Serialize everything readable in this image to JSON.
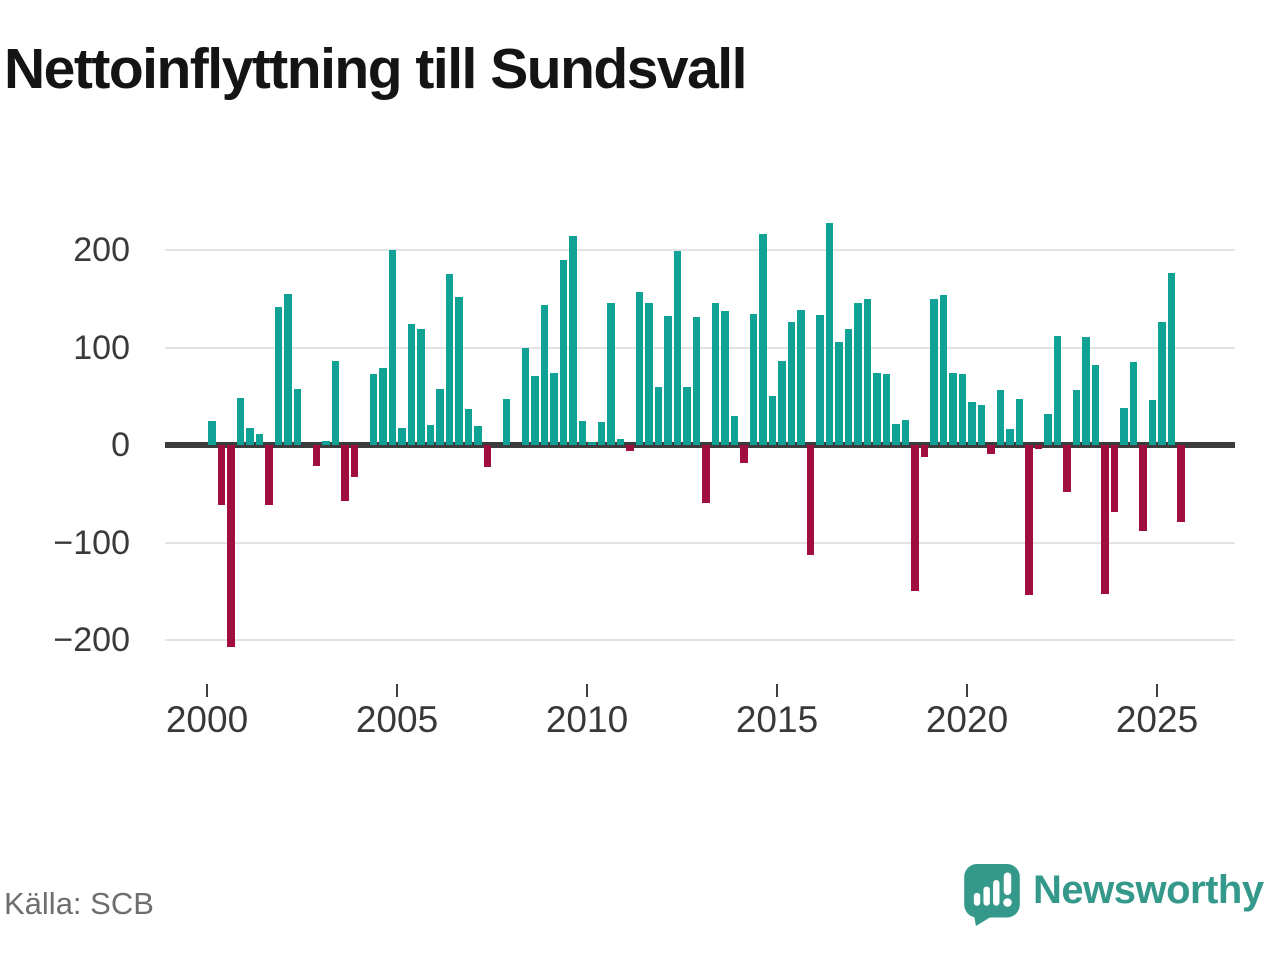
{
  "title": "Nettoinflyttning till Sundsvall",
  "source": "Källa: SCB",
  "branding": {
    "name": "Newsworthy",
    "color": "#34988a"
  },
  "chart_data": {
    "type": "bar",
    "title": "Nettoinflyttning till Sundsvall",
    "xlabel": "",
    "ylabel": "",
    "grid": true,
    "legend": "none",
    "ylim": [
      -225,
      240
    ],
    "positive_color": "#11a296",
    "negative_color": "#a00d3f",
    "y_ticks": [
      {
        "value": 200,
        "label": "200"
      },
      {
        "value": 100,
        "label": "100"
      },
      {
        "value": 0,
        "label": "0"
      },
      {
        "value": -100,
        "label": "−100"
      },
      {
        "value": -200,
        "label": "−200"
      }
    ],
    "x_ticks": [
      {
        "year": 2000,
        "label": "2000"
      },
      {
        "year": 2005,
        "label": "2005"
      },
      {
        "year": 2010,
        "label": "2010"
      },
      {
        "year": 2015,
        "label": "2015"
      },
      {
        "year": 2020,
        "label": "2020"
      },
      {
        "year": 2025,
        "label": "2025"
      }
    ],
    "categories": [
      "2000K1",
      "2000K2",
      "2000K3",
      "2000K4",
      "2001K1",
      "2001K2",
      "2001K3",
      "2001K4",
      "2002K1",
      "2002K2",
      "2002K3",
      "2002K4",
      "2003K1",
      "2003K2",
      "2003K3",
      "2003K4",
      "2004K1",
      "2004K2",
      "2004K3",
      "2004K4",
      "2005K1",
      "2005K2",
      "2005K3",
      "2005K4",
      "2006K1",
      "2006K2",
      "2006K3",
      "2006K4",
      "2007K1",
      "2007K2",
      "2007K3",
      "2007K4",
      "2008K1",
      "2008K2",
      "2008K3",
      "2008K4",
      "2009K1",
      "2009K2",
      "2009K3",
      "2009K4",
      "2010K1",
      "2010K2",
      "2010K3",
      "2010K4",
      "2011K1",
      "2011K2",
      "2011K3",
      "2011K4",
      "2012K1",
      "2012K2",
      "2012K3",
      "2012K4",
      "2013K1",
      "2013K2",
      "2013K3",
      "2013K4",
      "2014K1",
      "2014K2",
      "2014K3",
      "2014K4",
      "2015K1",
      "2015K2",
      "2015K3",
      "2015K4",
      "2016K1",
      "2016K2",
      "2016K3",
      "2016K4",
      "2017K1",
      "2017K2",
      "2017K3",
      "2017K4",
      "2018K1",
      "2018K2",
      "2018K3",
      "2018K4",
      "2019K1",
      "2019K2",
      "2019K3",
      "2019K4",
      "2020K1",
      "2020K2",
      "2020K3",
      "2020K4",
      "2021K1",
      "2021K2",
      "2021K3",
      "2021K4",
      "2022K1",
      "2022K2",
      "2022K3",
      "2022K4",
      "2023K1",
      "2023K2",
      "2023K3",
      "2023K4",
      "2024K1",
      "2024K2",
      "2024K3",
      "2024K4",
      "2025K1",
      "2025K2",
      "2025K3"
    ],
    "values": [
      25,
      -62,
      -207,
      48,
      17,
      11,
      -62,
      142,
      155,
      57,
      0,
      -22,
      4,
      86,
      -57,
      -33,
      0,
      73,
      79,
      200,
      17,
      124,
      119,
      21,
      57,
      175,
      152,
      37,
      20,
      -23,
      0,
      47,
      0,
      100,
      71,
      144,
      74,
      190,
      214,
      25,
      3,
      24,
      146,
      6,
      -6,
      157,
      146,
      59,
      132,
      199,
      59,
      131,
      -59,
      146,
      137,
      30,
      -18,
      134,
      216,
      50,
      86,
      126,
      138,
      -113,
      133,
      228,
      106,
      119,
      146,
      150,
      74,
      73,
      22,
      26,
      -150,
      -12,
      150,
      154,
      74,
      73,
      44,
      41,
      -9,
      56,
      16,
      47,
      -154,
      -4,
      32,
      112,
      -48,
      56,
      111,
      82,
      -153,
      -69,
      38,
      85,
      -88,
      46,
      126,
      176,
      -79
    ]
  }
}
